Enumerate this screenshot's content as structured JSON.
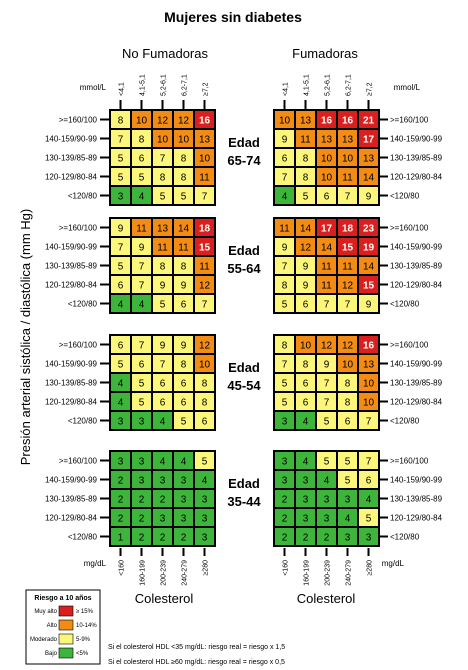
{
  "title": "Mujeres sin diabetes",
  "columns": {
    "left": "No Fumadoras",
    "right": "Fumadoras"
  },
  "units": {
    "top": "mmol/L",
    "bottom": "mg/dL"
  },
  "cholesterol_mmol_ticks": [
    "<4,1",
    "4,1-5,1",
    "5,2-6,1",
    "6,2-7,1",
    "≥7,2"
  ],
  "cholesterol_mgdl_ticks": [
    "<160",
    "160-199",
    "200-239",
    "240-279",
    "≥280"
  ],
  "bp_labels": [
    ">=160/100",
    "140-159/90-99",
    "130-139/85-89",
    "120-129/80-84",
    "<120/80"
  ],
  "y_axis_label": "Presión arterial sistólica / diastólica (mm Hg)",
  "x_axis_label": "Colesterol",
  "colors": {
    "very_high": "#d9201e",
    "high": "#f28c14",
    "moderate": "#fcf67a",
    "low": "#3db53a"
  },
  "legend": {
    "title": "Riesgo a 10 años",
    "items": [
      {
        "level": "Muy alto",
        "range": "≥ 15%",
        "key": "very_high"
      },
      {
        "level": "Alto",
        "range": "10-14%",
        "key": "high"
      },
      {
        "level": "Moderado",
        "range": "5-9%",
        "key": "moderate"
      },
      {
        "level": "Bajo",
        "range": "<5%",
        "key": "low"
      }
    ]
  },
  "footnotes": [
    "Si el colesterol HDL <35 mg/dL: riesgo real = riesgo x 1,5",
    "Si el colesterol HDL ≥60 mg/dL: riesgo real = riesgo x 0,5"
  ],
  "chart_data": {
    "type": "heatmap",
    "title": "Mujeres sin diabetes",
    "x_categories": [
      "<160",
      "160-199",
      "200-239",
      "240-279",
      "≥280"
    ],
    "y_categories": [
      ">=160/100",
      "140-159/90-99",
      "130-139/85-89",
      "120-129/80-84",
      "<120/80"
    ],
    "xlabel": "Colesterol",
    "ylabel": "Presión arterial sistólica / diastólica (mm Hg)",
    "age_groups": [
      {
        "label_top": "Edad",
        "label_bottom": "65-74",
        "no_fumadoras": [
          [
            8,
            10,
            12,
            12,
            16
          ],
          [
            7,
            8,
            10,
            10,
            13
          ],
          [
            5,
            6,
            7,
            8,
            10
          ],
          [
            5,
            5,
            8,
            8,
            11
          ],
          [
            3,
            4,
            5,
            5,
            7
          ]
        ],
        "fumadoras": [
          [
            10,
            13,
            16,
            16,
            21
          ],
          [
            9,
            11,
            13,
            13,
            17
          ],
          [
            6,
            8,
            10,
            10,
            13
          ],
          [
            7,
            8,
            10,
            11,
            14
          ],
          [
            4,
            5,
            6,
            7,
            9
          ]
        ]
      },
      {
        "label_top": "Edad",
        "label_bottom": "55-64",
        "no_fumadoras": [
          [
            9,
            11,
            13,
            14,
            18
          ],
          [
            7,
            9,
            11,
            11,
            15
          ],
          [
            5,
            7,
            8,
            8,
            11
          ],
          [
            6,
            7,
            9,
            9,
            12
          ],
          [
            4,
            4,
            5,
            6,
            7
          ]
        ],
        "fumadoras": [
          [
            11,
            14,
            17,
            18,
            23
          ],
          [
            9,
            12,
            14,
            15,
            19
          ],
          [
            7,
            9,
            11,
            11,
            14
          ],
          [
            8,
            9,
            11,
            12,
            15
          ],
          [
            5,
            6,
            7,
            7,
            9
          ]
        ]
      },
      {
        "label_top": "Edad",
        "label_bottom": "45-54",
        "no_fumadoras": [
          [
            6,
            7,
            9,
            9,
            12
          ],
          [
            5,
            6,
            7,
            8,
            10
          ],
          [
            4,
            5,
            6,
            6,
            8
          ],
          [
            4,
            5,
            6,
            6,
            8
          ],
          [
            3,
            3,
            4,
            5,
            6
          ]
        ],
        "fumadoras": [
          [
            8,
            10,
            12,
            12,
            16
          ],
          [
            7,
            8,
            9,
            10,
            13
          ],
          [
            5,
            6,
            7,
            8,
            10
          ],
          [
            5,
            6,
            7,
            8,
            10
          ],
          [
            3,
            4,
            5,
            6,
            7
          ]
        ]
      },
      {
        "label_top": "Edad",
        "label_bottom": "35-44",
        "no_fumadoras": [
          [
            3,
            3,
            4,
            4,
            5
          ],
          [
            2,
            3,
            3,
            3,
            4
          ],
          [
            2,
            2,
            2,
            3,
            3
          ],
          [
            2,
            2,
            3,
            3,
            3
          ],
          [
            1,
            2,
            2,
            2,
            3
          ]
        ],
        "fumadoras": [
          [
            3,
            4,
            5,
            5,
            7
          ],
          [
            3,
            3,
            4,
            5,
            6
          ],
          [
            2,
            3,
            3,
            3,
            4
          ],
          [
            2,
            3,
            3,
            4,
            5
          ],
          [
            2,
            2,
            2,
            3,
            3
          ]
        ]
      }
    ]
  }
}
